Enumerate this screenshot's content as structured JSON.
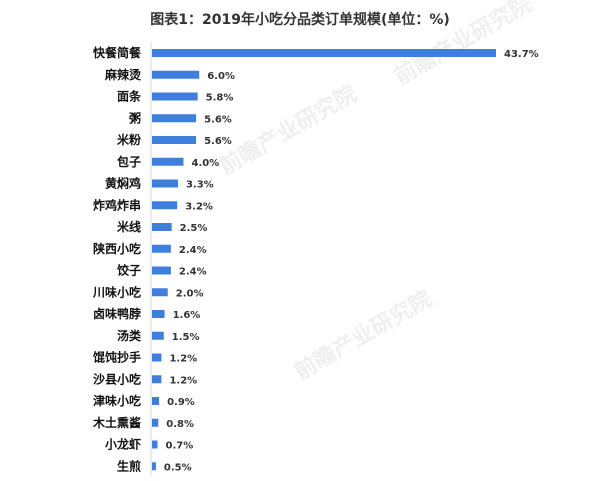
{
  "chart_data": {
    "type": "bar",
    "orientation": "horizontal",
    "title": "图表1：2019年小吃分品类订单规模(单位：%)",
    "categories": [
      "快餐简餐",
      "麻辣烫",
      "面条",
      "粥",
      "米粉",
      "包子",
      "黄焖鸡",
      "炸鸡炸串",
      "米线",
      "陕西小吃",
      "饺子",
      "川味小吃",
      "卤味鸭脖",
      "汤类",
      "馄饨抄手",
      "沙县小吃",
      "津味小吃",
      "木土熏酱",
      "小龙虾",
      "生煎"
    ],
    "values": [
      43.7,
      6.0,
      5.8,
      5.6,
      5.6,
      4.0,
      3.3,
      3.2,
      2.5,
      2.4,
      2.4,
      2.0,
      1.6,
      1.5,
      1.2,
      1.2,
      0.9,
      0.8,
      0.7,
      0.5
    ],
    "value_labels": [
      "43.7%",
      "6.0%",
      "5.8%",
      "5.6%",
      "5.6%",
      "4.0%",
      "3.3%",
      "3.2%",
      "2.5%",
      "2.4%",
      "2.4%",
      "2.0%",
      "1.6%",
      "1.5%",
      "1.2%",
      "1.2%",
      "0.9%",
      "0.8%",
      "0.7%",
      "0.5%"
    ],
    "xlim": [
      0,
      43.7
    ],
    "grid": false,
    "bar_color": "#3f7fdc",
    "watermark": "前瞻产业研究院"
  }
}
